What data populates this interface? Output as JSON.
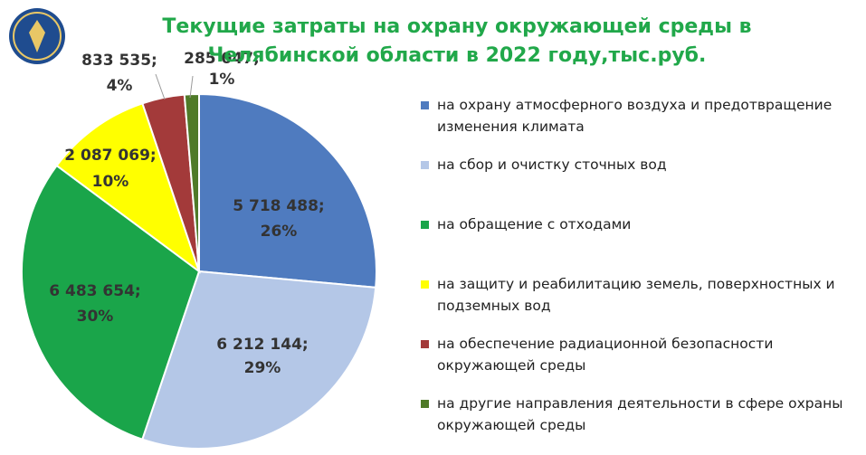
{
  "chart_data": {
    "type": "pie",
    "title": "Текущие затраты на охрану окружающей среды в Челябинской области в 2022 году,тыс.руб.",
    "categories": [
      "на охрану атмосферного воздуха и предотвращение изменения климата",
      "на сбор и очистку сточных вод",
      "на обращение с отходами",
      "на защиту и реабилитацию земель, поверхностных и подземных вод",
      "на обеспечение радиационной безопасности окружающей среды",
      "на другие направления деятельности в сфере охраны окружающей среды"
    ],
    "values": [
      5718488,
      6212144,
      6483654,
      2087069,
      833535,
      285047
    ],
    "value_labels": [
      "5 718 488;",
      "6 212 144;",
      "6 483 654;",
      "2 087 069;",
      "833 535;",
      "285 047;"
    ],
    "percent_labels": [
      "26%",
      "29%",
      "30%",
      "10%",
      "4%",
      "1%"
    ],
    "colors": [
      "#4f7bbf",
      "#b4c7e7",
      "#1aa54a",
      "#ffff00",
      "#a33a3a",
      "#4f7a28"
    ],
    "legend": "right"
  }
}
